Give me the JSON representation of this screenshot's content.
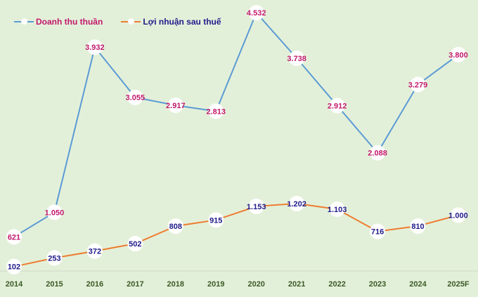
{
  "chart_data": {
    "type": "line",
    "title": "",
    "xlabel": "",
    "ylabel": "",
    "categories": [
      "2014",
      "2015",
      "2016",
      "2017",
      "2018",
      "2019",
      "2020",
      "2021",
      "2022",
      "2023",
      "2024",
      "2025F"
    ],
    "series": [
      {
        "name": "Doanh thu thuần",
        "color": "#5b9bd5",
        "label_color": "#c2186b",
        "values": [
          621,
          1050,
          3932,
          3055,
          2917,
          2813,
          4532,
          3738,
          2912,
          2088,
          3279,
          3800
        ],
        "labels": [
          "621",
          "1.050",
          "3.932",
          "3.055",
          "2.917",
          "2.813",
          "4.532",
          "3.738",
          "2.912",
          "2.088",
          "3.279",
          "3.800"
        ]
      },
      {
        "name": "Lợi nhuận sau thuế",
        "color": "#ed7d31",
        "label_color": "#1f1a8a",
        "values": [
          102,
          253,
          372,
          502,
          808,
          915,
          1153,
          1202,
          1103,
          716,
          810,
          1000
        ],
        "labels": [
          "102",
          "253",
          "372",
          "502",
          "808",
          "915",
          "1.153",
          "1.202",
          "1.103",
          "716",
          "810",
          "1.000"
        ]
      }
    ],
    "ylim": [
      0,
      4600
    ],
    "grid": false,
    "legend": "top-left"
  }
}
